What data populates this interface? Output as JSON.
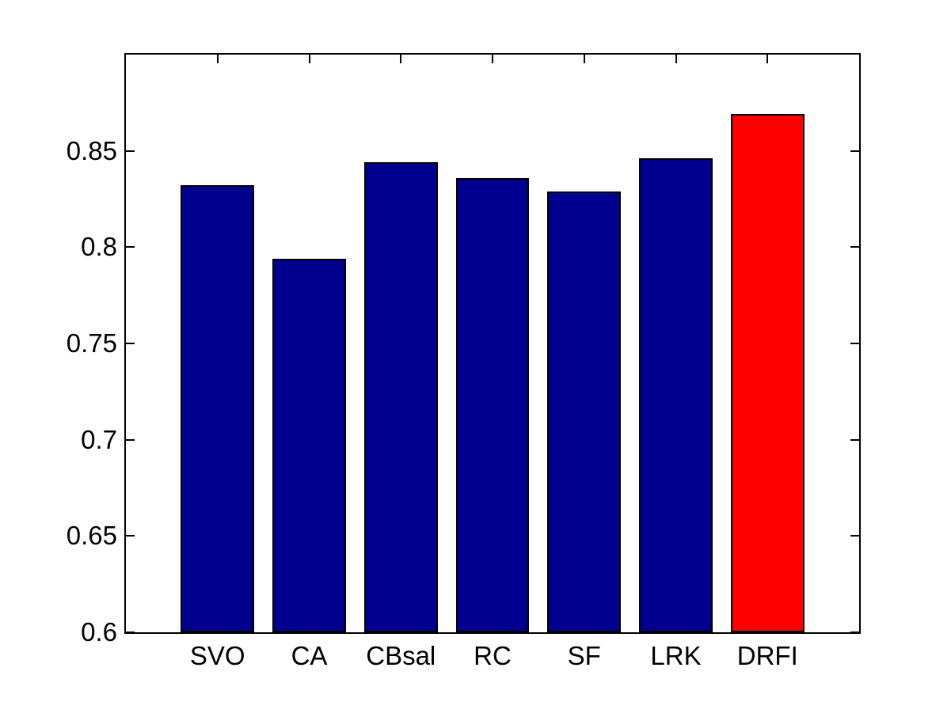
{
  "figure": {
    "background_color": "#FFFFFF",
    "axes_edge_color": "#000000",
    "text_color": "#000000"
  },
  "chart_data": {
    "type": "bar",
    "title": "",
    "xlabel": "",
    "ylabel": "",
    "categories": [
      "SVO",
      "CA",
      "CBsal",
      "RC",
      "SF",
      "LRK",
      "DRFI"
    ],
    "values": [
      0.832,
      0.794,
      0.844,
      0.836,
      0.829,
      0.846,
      0.869
    ],
    "bar_colors": [
      "#00008F",
      "#00008F",
      "#00008F",
      "#00008F",
      "#00008F",
      "#00008F",
      "#FF0000"
    ],
    "bar_edge_color": "#000000",
    "highlight_bar": "DRFI",
    "highlight_color": "#FF0000",
    "default_bar_color": "#00008F",
    "ylim": [
      0.6,
      0.9
    ],
    "yticks": [
      0.6,
      0.65,
      0.7,
      0.75,
      0.8,
      0.85
    ],
    "ytick_labels": [
      "0.6",
      "0.65",
      "0.7",
      "0.75",
      "0.8",
      "0.85"
    ],
    "grid": false,
    "legend": null,
    "style": "matlab-bar-plot"
  }
}
